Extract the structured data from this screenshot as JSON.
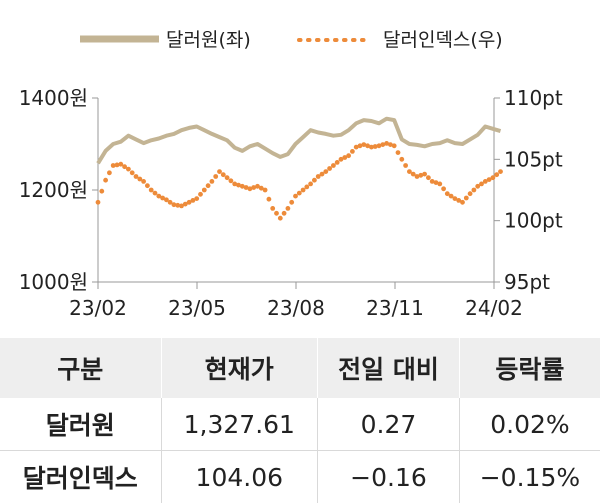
{
  "chart_data": {
    "type": "line",
    "legend": {
      "position": "top"
    },
    "x_ticks": [
      "23/02",
      "23/05",
      "23/08",
      "23/11",
      "24/02"
    ],
    "left_axis": {
      "ticks": [
        "1000원",
        "1200원",
        "1400원"
      ],
      "ylim": [
        1000,
        1400
      ]
    },
    "right_axis": {
      "ticks": [
        "95pt",
        "100pt",
        "105pt",
        "110pt"
      ],
      "ylim": [
        95,
        110
      ]
    },
    "series": [
      {
        "name": "달러원(좌)",
        "axis": "left",
        "style": "solid",
        "color": "#c3b494",
        "x": [
          "2023-02-01",
          "2023-02-08",
          "2023-02-15",
          "2023-02-22",
          "2023-03-01",
          "2023-03-08",
          "2023-03-15",
          "2023-03-22",
          "2023-03-29",
          "2023-04-05",
          "2023-04-12",
          "2023-04-19",
          "2023-04-26",
          "2023-05-03",
          "2023-05-10",
          "2023-05-17",
          "2023-05-24",
          "2023-05-31",
          "2023-06-07",
          "2023-06-14",
          "2023-06-21",
          "2023-06-28",
          "2023-07-05",
          "2023-07-12",
          "2023-07-19",
          "2023-07-26",
          "2023-08-02",
          "2023-08-09",
          "2023-08-16",
          "2023-08-23",
          "2023-08-30",
          "2023-09-06",
          "2023-09-13",
          "2023-09-20",
          "2023-09-27",
          "2023-10-04",
          "2023-10-11",
          "2023-10-18",
          "2023-10-25",
          "2023-11-01",
          "2023-11-08",
          "2023-11-15",
          "2023-11-22",
          "2023-11-29",
          "2023-12-06",
          "2023-12-13",
          "2023-12-20",
          "2023-12-27",
          "2024-01-03",
          "2024-01-10",
          "2024-01-17",
          "2024-01-24",
          "2024-01-31",
          "2024-02-07"
        ],
        "values": [
          1258,
          1285,
          1300,
          1305,
          1318,
          1310,
          1302,
          1308,
          1312,
          1318,
          1322,
          1330,
          1335,
          1338,
          1330,
          1322,
          1315,
          1308,
          1292,
          1285,
          1295,
          1300,
          1290,
          1280,
          1272,
          1278,
          1300,
          1315,
          1330,
          1325,
          1322,
          1318,
          1320,
          1330,
          1345,
          1352,
          1350,
          1345,
          1355,
          1352,
          1310,
          1300,
          1298,
          1295,
          1300,
          1302,
          1308,
          1302,
          1300,
          1310,
          1320,
          1338,
          1333,
          1328
        ]
      },
      {
        "name": "달러인덱스(우)",
        "axis": "right",
        "style": "dotted",
        "color": "#ed8b3a",
        "x": [
          "2023-02-01",
          "2023-02-08",
          "2023-02-15",
          "2023-02-22",
          "2023-03-01",
          "2023-03-08",
          "2023-03-15",
          "2023-03-22",
          "2023-03-29",
          "2023-04-05",
          "2023-04-12",
          "2023-04-19",
          "2023-04-26",
          "2023-05-03",
          "2023-05-10",
          "2023-05-17",
          "2023-05-24",
          "2023-05-31",
          "2023-06-07",
          "2023-06-14",
          "2023-06-21",
          "2023-06-28",
          "2023-07-05",
          "2023-07-12",
          "2023-07-19",
          "2023-07-26",
          "2023-08-02",
          "2023-08-09",
          "2023-08-16",
          "2023-08-23",
          "2023-08-30",
          "2023-09-06",
          "2023-09-13",
          "2023-09-20",
          "2023-09-27",
          "2023-10-04",
          "2023-10-11",
          "2023-10-18",
          "2023-10-25",
          "2023-11-01",
          "2023-11-08",
          "2023-11-15",
          "2023-11-22",
          "2023-11-29",
          "2023-12-06",
          "2023-12-13",
          "2023-12-20",
          "2023-12-27",
          "2024-01-03",
          "2024-01-10",
          "2024-01-17",
          "2024-01-24",
          "2024-01-31",
          "2024-02-07"
        ],
        "values": [
          101.5,
          103.3,
          104.5,
          104.6,
          104.2,
          103.6,
          103.2,
          102.5,
          102.0,
          101.7,
          101.3,
          101.2,
          101.5,
          101.8,
          102.5,
          103.2,
          104.0,
          103.5,
          103.0,
          102.8,
          102.6,
          102.8,
          102.5,
          101.0,
          100.2,
          101.0,
          102.0,
          102.5,
          103.0,
          103.6,
          104.0,
          104.5,
          105.0,
          105.3,
          106.0,
          106.2,
          106.0,
          106.1,
          106.3,
          106.1,
          105.0,
          104.0,
          103.6,
          103.8,
          103.2,
          103.0,
          102.2,
          101.8,
          101.5,
          102.2,
          102.8,
          103.2,
          103.5,
          104.0
        ]
      }
    ]
  },
  "table": {
    "headers": [
      "구분",
      "현재가",
      "전일 대비",
      "등락률"
    ],
    "rows": [
      [
        "달러원",
        "1,327.61",
        "0.27",
        "0.02%"
      ],
      [
        "달러인덱스",
        "104.06",
        "−0.16",
        "−0.15%"
      ]
    ]
  }
}
